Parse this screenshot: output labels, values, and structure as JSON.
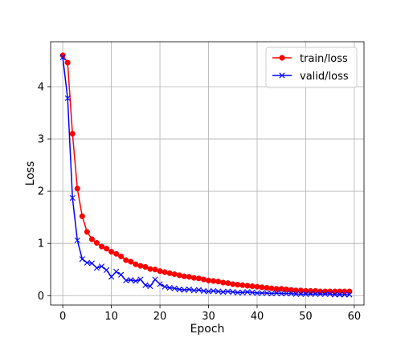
{
  "chart_data": {
    "type": "line",
    "title": "",
    "xlabel": "Epoch",
    "ylabel": "Loss",
    "xlim": [
      -2.5,
      62
    ],
    "ylim": [
      -0.18,
      4.86
    ],
    "xticks": [
      0,
      10,
      20,
      30,
      40,
      50,
      60
    ],
    "yticks": [
      0,
      1,
      2,
      3,
      4
    ],
    "grid": true,
    "legend_position": "top-right",
    "series": [
      {
        "name": "train/loss",
        "color": "#ff0000",
        "marker": "circle",
        "x": [
          0,
          1,
          2,
          3,
          4,
          5,
          6,
          7,
          8,
          9,
          10,
          11,
          12,
          13,
          14,
          15,
          16,
          17,
          18,
          19,
          20,
          21,
          22,
          23,
          24,
          25,
          26,
          27,
          28,
          29,
          30,
          31,
          32,
          33,
          34,
          35,
          36,
          37,
          38,
          39,
          40,
          41,
          42,
          43,
          44,
          45,
          46,
          47,
          48,
          49,
          50,
          51,
          52,
          53,
          54,
          55,
          56,
          57,
          58,
          59
        ],
        "values": [
          4.6,
          4.46,
          3.1,
          2.05,
          1.52,
          1.22,
          1.08,
          1.01,
          0.94,
          0.9,
          0.84,
          0.8,
          0.75,
          0.68,
          0.65,
          0.6,
          0.57,
          0.55,
          0.51,
          0.5,
          0.47,
          0.45,
          0.43,
          0.41,
          0.39,
          0.37,
          0.36,
          0.34,
          0.33,
          0.31,
          0.29,
          0.28,
          0.27,
          0.25,
          0.24,
          0.22,
          0.21,
          0.2,
          0.19,
          0.18,
          0.17,
          0.16,
          0.15,
          0.14,
          0.13,
          0.13,
          0.12,
          0.11,
          0.1,
          0.1,
          0.09,
          0.09,
          0.09,
          0.08,
          0.08,
          0.08,
          0.08,
          0.08,
          0.08,
          0.08
        ]
      },
      {
        "name": "valid/loss",
        "color": "#0000ff",
        "marker": "x",
        "x": [
          0,
          1,
          2,
          3,
          4,
          5,
          6,
          7,
          8,
          9,
          10,
          11,
          12,
          13,
          14,
          15,
          16,
          17,
          18,
          19,
          20,
          21,
          22,
          23,
          24,
          25,
          26,
          27,
          28,
          29,
          30,
          31,
          32,
          33,
          34,
          35,
          36,
          37,
          38,
          39,
          40,
          41,
          42,
          43,
          44,
          45,
          46,
          47,
          48,
          49,
          50,
          51,
          52,
          53,
          54,
          55,
          56,
          57,
          58,
          59
        ],
        "values": [
          4.56,
          3.78,
          1.87,
          1.06,
          0.7,
          0.63,
          0.62,
          0.53,
          0.56,
          0.49,
          0.36,
          0.46,
          0.4,
          0.29,
          0.3,
          0.28,
          0.31,
          0.2,
          0.18,
          0.31,
          0.22,
          0.17,
          0.15,
          0.14,
          0.12,
          0.11,
          0.12,
          0.1,
          0.11,
          0.09,
          0.08,
          0.09,
          0.08,
          0.07,
          0.08,
          0.07,
          0.06,
          0.06,
          0.07,
          0.06,
          0.05,
          0.05,
          0.05,
          0.04,
          0.05,
          0.04,
          0.04,
          0.04,
          0.03,
          0.03,
          0.03,
          0.03,
          0.03,
          0.03,
          0.03,
          0.03,
          0.02,
          0.02,
          0.02,
          0.02
        ]
      }
    ]
  }
}
